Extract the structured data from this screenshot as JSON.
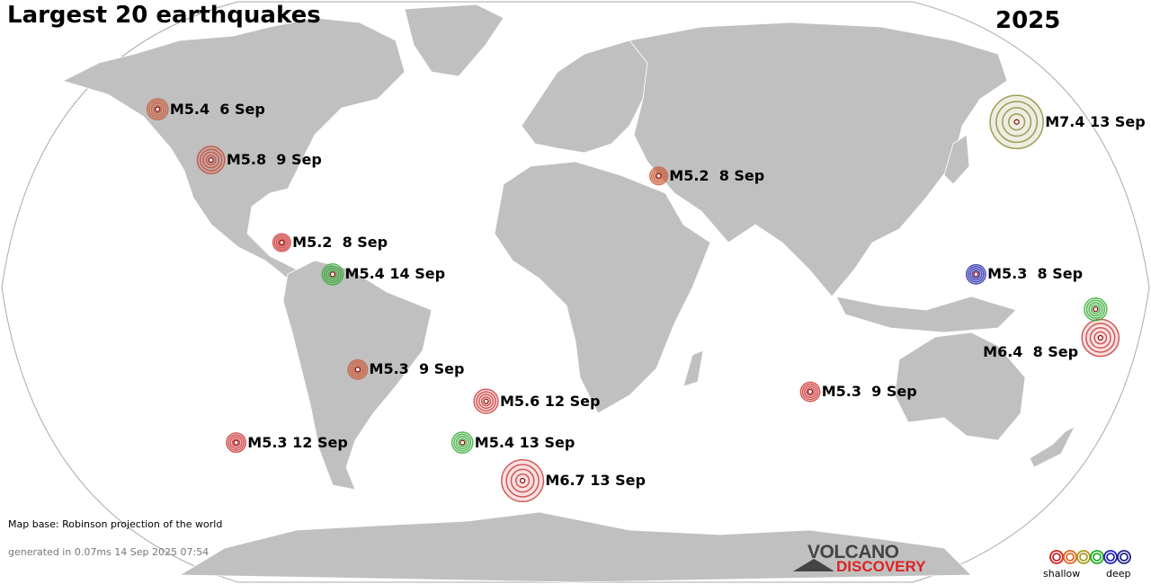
{
  "title": "Largest 20 earthquakes",
  "year": "2025",
  "map_note": "Map base: Robinson projection of the world",
  "generated": "generated in 0.07ms 14 Sep 2025 07:54",
  "logo": {
    "line1": "VOLCANO",
    "line2": "DISCOVERY"
  },
  "legend": {
    "shallow": "shallow",
    "deep": "deep",
    "colors": [
      "#cc2222",
      "#dd6622",
      "#aa9922",
      "#22aa22",
      "#2222bb",
      "#222288"
    ]
  },
  "colors": {
    "land": "#c0c0c0",
    "ocean": "#ffffff",
    "border": "#ffffff"
  },
  "earthquakes": [
    {
      "label": "M5.4  6 Sep",
      "lon": -155,
      "lat": 57,
      "mag": 5.4,
      "color": "#cc5533"
    },
    {
      "label": "M5.8  9 Sep",
      "lon": -125,
      "lat": 41,
      "mag": 5.8,
      "color": "#cc4433"
    },
    {
      "label": "M5.2  8 Sep",
      "lon": 28,
      "lat": 36,
      "mag": 5.2,
      "color": "#cc5533"
    },
    {
      "label": "M7.4 13 Sep",
      "lon": 160,
      "lat": 53,
      "mag": 7.4,
      "color": "#888833"
    },
    {
      "label": "M5.2  8 Sep",
      "lon": -94,
      "lat": 15,
      "mag": 5.2,
      "color": "#cc3333"
    },
    {
      "label": "M5.4 14 Sep",
      "lon": -77,
      "lat": 5,
      "mag": 5.4,
      "color": "#33aa33"
    },
    {
      "label": "M5.3  8 Sep",
      "lon": 127,
      "lat": 5,
      "mag": 5.3,
      "color": "#2222aa"
    },
    {
      "label": "M6.4  8 Sep",
      "lon": 168,
      "lat": -15,
      "mag": 6.4,
      "color": "#cc3333"
    },
    {
      "label": "M5.3  9 Sep",
      "lon": -71,
      "lat": -25,
      "mag": 5.3,
      "color": "#cc5533"
    },
    {
      "label": "M5.6 12 Sep",
      "lon": -30,
      "lat": -35,
      "mag": 5.6,
      "color": "#cc3333"
    },
    {
      "label": "M5.3  9 Sep",
      "lon": 78,
      "lat": -32,
      "mag": 5.3,
      "color": "#cc3333"
    },
    {
      "label": "M5.3 12 Sep",
      "lon": -120,
      "lat": -48,
      "mag": 5.3,
      "color": "#cc3333"
    },
    {
      "label": "M5.4 13 Sep",
      "lon": -40,
      "lat": -48,
      "mag": 5.4,
      "color": "#33aa33"
    },
    {
      "label": "M6.7 13 Sep",
      "lon": -20,
      "lat": -60,
      "mag": 6.7,
      "color": "#cc3333"
    },
    {
      "label": "",
      "lon": 165,
      "lat": -6,
      "mag": 5.5,
      "color": "#33aa33"
    }
  ]
}
